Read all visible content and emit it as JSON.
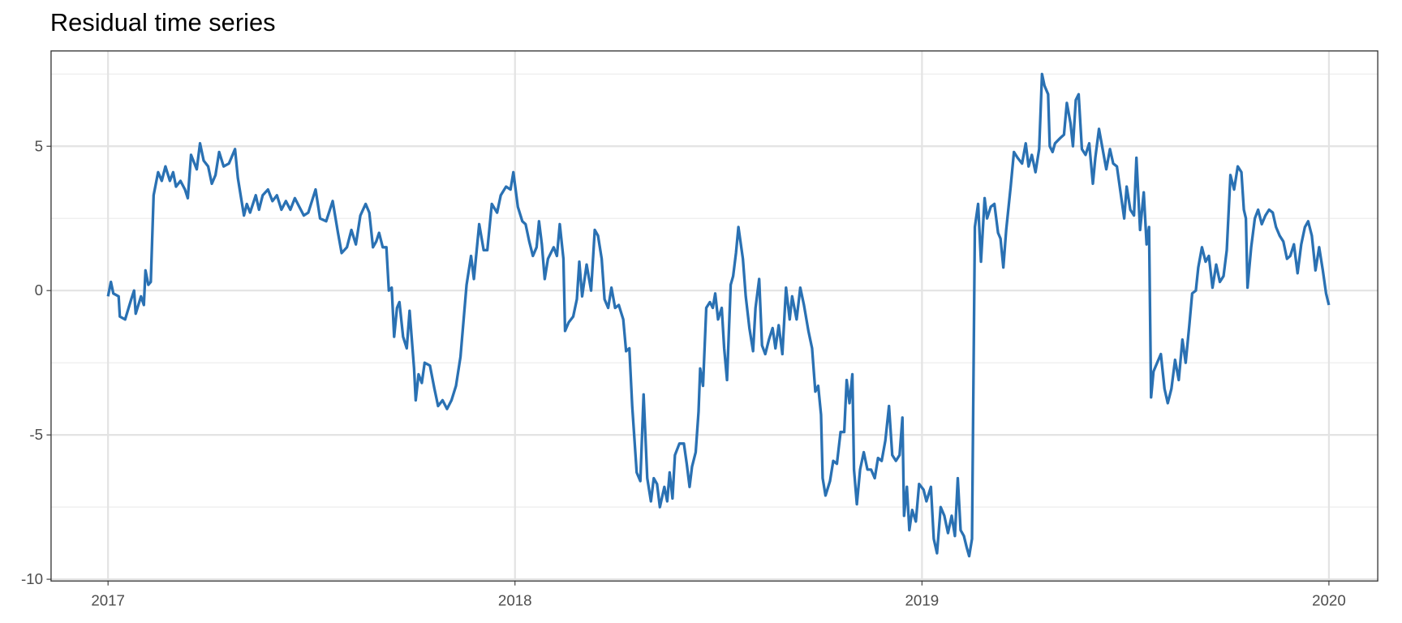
{
  "chart_data": {
    "type": "line",
    "title": "Residual time series",
    "xlim": [
      2016.86,
      2020.12
    ],
    "xticks": [
      2017,
      2018,
      2019,
      2020
    ],
    "ylim": [
      -10.06,
      8.3
    ],
    "yticks": [
      -10,
      -5,
      0,
      5
    ],
    "yminorticks": [
      -7.5,
      -2.5,
      2.5,
      7.5
    ],
    "grid": true,
    "series": [
      {
        "color": "#2a71b3",
        "x": [
          2017.0,
          2017.007,
          2017.013,
          2017.026,
          2017.029,
          2017.042,
          2017.057,
          2017.064,
          2017.068,
          2017.081,
          2017.088,
          2017.092,
          2017.099,
          2017.105,
          2017.112,
          2017.123,
          2017.132,
          2017.141,
          2017.152,
          2017.16,
          2017.167,
          2017.178,
          2017.189,
          2017.196,
          2017.204,
          2017.218,
          2017.226,
          2017.235,
          2017.246,
          2017.255,
          2017.264,
          2017.273,
          2017.284,
          2017.297,
          2017.312,
          2017.319,
          2017.327,
          2017.334,
          2017.341,
          2017.349,
          2017.363,
          2017.371,
          2017.38,
          2017.393,
          2017.404,
          2017.415,
          2017.426,
          2017.437,
          2017.448,
          2017.459,
          2017.47,
          2017.481,
          2017.492,
          2017.51,
          2017.521,
          2017.536,
          2017.552,
          2017.565,
          2017.574,
          2017.587,
          2017.598,
          2017.609,
          2017.62,
          2017.633,
          2017.642,
          2017.651,
          2017.659,
          2017.666,
          2017.675,
          2017.684,
          2017.69,
          2017.697,
          2017.703,
          2017.71,
          2017.716,
          2017.725,
          2017.734,
          2017.741,
          2017.752,
          2017.756,
          2017.763,
          2017.771,
          2017.778,
          2017.791,
          2017.802,
          2017.811,
          2017.822,
          2017.833,
          2017.844,
          2017.855,
          2017.866,
          2017.875,
          2017.881,
          2017.892,
          2017.899,
          2017.912,
          2017.923,
          2017.932,
          2017.943,
          2017.956,
          2017.965,
          2017.978,
          2017.989,
          2017.996,
          2018.007,
          2018.018,
          2018.026,
          2018.035,
          2018.044,
          2018.053,
          2018.059,
          2018.066,
          2018.073,
          2018.081,
          2018.095,
          2018.103,
          2018.11,
          2018.119,
          2018.123,
          2018.132,
          2018.143,
          2018.152,
          2018.158,
          2018.165,
          2018.176,
          2018.187,
          2018.196,
          2018.204,
          2018.213,
          2018.22,
          2018.229,
          2018.237,
          2018.246,
          2018.255,
          2018.266,
          2018.273,
          2018.281,
          2018.288,
          2018.299,
          2018.308,
          2018.316,
          2018.325,
          2018.334,
          2018.341,
          2018.349,
          2018.356,
          2018.367,
          2018.374,
          2018.38,
          2018.387,
          2018.393,
          2018.404,
          2018.415,
          2018.422,
          2018.429,
          2018.435,
          2018.444,
          2018.451,
          2018.455,
          2018.462,
          2018.47,
          2018.479,
          2018.486,
          2018.492,
          2018.499,
          2018.508,
          2018.514,
          2018.521,
          2018.53,
          2018.536,
          2018.543,
          2018.549,
          2018.56,
          2018.567,
          2018.576,
          2018.585,
          2018.591,
          2018.6,
          2018.607,
          2018.615,
          2018.624,
          2018.633,
          2018.64,
          2018.648,
          2018.657,
          2018.666,
          2018.675,
          2018.681,
          2018.692,
          2018.701,
          2018.71,
          2018.721,
          2018.73,
          2018.738,
          2018.745,
          2018.752,
          2018.756,
          2018.763,
          2018.774,
          2018.782,
          2018.791,
          2018.8,
          2018.809,
          2018.815,
          2018.822,
          2018.829,
          2018.833,
          2018.84,
          2018.848,
          2018.857,
          2018.866,
          2018.875,
          2018.884,
          2018.892,
          2018.901,
          2018.91,
          2018.919,
          2018.927,
          2018.936,
          2018.945,
          2018.952,
          2018.956,
          2018.963,
          2018.969,
          2018.976,
          2018.985,
          2018.993,
          2019.004,
          2019.011,
          2019.022,
          2019.029,
          2019.037,
          2019.046,
          2019.055,
          2019.064,
          2019.073,
          2019.081,
          2019.088,
          2019.095,
          2019.103,
          2019.11,
          2019.116,
          2019.123,
          2019.13,
          2019.138,
          2019.145,
          2019.154,
          2019.16,
          2019.169,
          2019.178,
          2019.187,
          2019.193,
          2019.2,
          2019.207,
          2019.218,
          2019.226,
          2019.235,
          2019.246,
          2019.255,
          2019.262,
          2019.27,
          2019.279,
          2019.288,
          2019.295,
          2019.301,
          2019.31,
          2019.314,
          2019.321,
          2019.327,
          2019.341,
          2019.349,
          2019.356,
          2019.365,
          2019.371,
          2019.378,
          2019.385,
          2019.393,
          2019.402,
          2019.411,
          2019.42,
          2019.426,
          2019.435,
          2019.444,
          2019.453,
          2019.462,
          2019.47,
          2019.479,
          2019.488,
          2019.497,
          2019.503,
          2019.512,
          2019.521,
          2019.527,
          2019.536,
          2019.545,
          2019.552,
          2019.558,
          2019.563,
          2019.569,
          2019.578,
          2019.587,
          2019.596,
          2019.604,
          2019.613,
          2019.622,
          2019.631,
          2019.64,
          2019.648,
          2019.657,
          2019.664,
          2019.673,
          2019.679,
          2019.688,
          2019.697,
          2019.705,
          2019.714,
          2019.723,
          2019.732,
          2019.741,
          2019.749,
          2019.758,
          2019.767,
          2019.776,
          2019.785,
          2019.791,
          2019.796,
          2019.8,
          2019.809,
          2019.818,
          2019.826,
          2019.835,
          2019.844,
          2019.853,
          2019.862,
          2019.87,
          2019.879,
          2019.888,
          2019.897,
          2019.905,
          2019.914,
          2019.923,
          2019.932,
          2019.941,
          2019.949,
          2019.958,
          2019.967,
          2019.976,
          2019.985,
          2019.993,
          2020.0
        ],
        "values": [
          -0.2,
          0.3,
          -0.1,
          -0.2,
          -0.9,
          -1.0,
          -0.3,
          0.0,
          -0.8,
          -0.2,
          -0.5,
          0.7,
          0.2,
          0.3,
          3.3,
          4.1,
          3.8,
          4.3,
          3.8,
          4.1,
          3.6,
          3.8,
          3.5,
          3.2,
          4.7,
          4.2,
          5.1,
          4.5,
          4.3,
          3.7,
          4.0,
          4.8,
          4.3,
          4.4,
          4.9,
          3.9,
          3.2,
          2.6,
          3.0,
          2.7,
          3.3,
          2.8,
          3.3,
          3.5,
          3.1,
          3.3,
          2.8,
          3.1,
          2.8,
          3.2,
          2.9,
          2.6,
          2.7,
          3.5,
          2.5,
          2.4,
          3.1,
          2.0,
          1.3,
          1.5,
          2.1,
          1.6,
          2.6,
          3.0,
          2.7,
          1.5,
          1.7,
          2.0,
          1.5,
          1.5,
          0.0,
          0.1,
          -1.6,
          -0.6,
          -0.4,
          -1.6,
          -2.0,
          -0.7,
          -2.7,
          -3.8,
          -2.9,
          -3.2,
          -2.5,
          -2.6,
          -3.4,
          -4.0,
          -3.8,
          -4.1,
          -3.8,
          -3.3,
          -2.3,
          -0.8,
          0.2,
          1.2,
          0.4,
          2.3,
          1.4,
          1.4,
          3.0,
          2.7,
          3.3,
          3.6,
          3.5,
          4.1,
          2.9,
          2.4,
          2.3,
          1.7,
          1.2,
          1.5,
          2.4,
          1.6,
          0.4,
          1.1,
          1.5,
          1.2,
          2.3,
          1.1,
          -1.4,
          -1.1,
          -0.9,
          -0.3,
          1.0,
          -0.2,
          0.9,
          0.0,
          2.1,
          1.9,
          1.1,
          -0.3,
          -0.6,
          0.1,
          -0.6,
          -0.5,
          -1.0,
          -2.1,
          -2.0,
          -4.0,
          -6.3,
          -6.6,
          -3.6,
          -6.5,
          -7.3,
          -6.5,
          -6.7,
          -7.5,
          -6.8,
          -7.3,
          -6.3,
          -7.2,
          -5.7,
          -5.3,
          -5.3,
          -6.0,
          -6.8,
          -6.1,
          -5.6,
          -4.2,
          -2.7,
          -3.3,
          -0.6,
          -0.4,
          -0.6,
          -0.1,
          -1.0,
          -0.6,
          -2.0,
          -3.1,
          0.2,
          0.5,
          1.3,
          2.2,
          1.1,
          -0.2,
          -1.3,
          -2.1,
          -0.6,
          0.4,
          -1.9,
          -2.2,
          -1.7,
          -1.3,
          -2.0,
          -1.2,
          -2.2,
          0.1,
          -1.0,
          -0.2,
          -1.0,
          0.1,
          -0.5,
          -1.4,
          -2.0,
          -3.5,
          -3.3,
          -4.3,
          -6.5,
          -7.1,
          -6.6,
          -5.9,
          -6.0,
          -4.9,
          -4.9,
          -3.1,
          -3.9,
          -2.9,
          -6.2,
          -7.4,
          -6.2,
          -5.6,
          -6.2,
          -6.2,
          -6.5,
          -5.8,
          -5.9,
          -5.2,
          -4.0,
          -5.7,
          -5.9,
          -5.7,
          -4.4,
          -7.8,
          -6.8,
          -8.3,
          -7.6,
          -8.0,
          -6.7,
          -6.9,
          -7.3,
          -6.8,
          -8.6,
          -9.1,
          -7.5,
          -7.8,
          -8.4,
          -7.8,
          -8.5,
          -6.5,
          -8.3,
          -8.5,
          -8.9,
          -9.2,
          -8.6,
          2.2,
          3.0,
          1.0,
          3.2,
          2.5,
          2.9,
          3.0,
          2.0,
          1.8,
          0.8,
          2.1,
          3.6,
          4.8,
          4.6,
          4.4,
          5.1,
          4.3,
          4.7,
          4.1,
          4.9,
          7.5,
          7.1,
          6.8,
          5.0,
          4.8,
          5.1,
          5.3,
          5.4,
          6.5,
          5.8,
          5.0,
          6.6,
          6.8,
          4.9,
          4.7,
          5.1,
          3.7,
          4.6,
          5.6,
          4.9,
          4.2,
          4.9,
          4.4,
          4.3,
          3.4,
          2.5,
          3.6,
          2.8,
          2.6,
          4.6,
          2.1,
          3.4,
          1.6,
          2.2,
          -3.7,
          -2.8,
          -2.5,
          -2.2,
          -3.4,
          -3.9,
          -3.4,
          -2.4,
          -3.1,
          -1.7,
          -2.5,
          -1.2,
          -0.1,
          0.0,
          0.8,
          1.5,
          1.0,
          1.2,
          0.1,
          0.9,
          0.3,
          0.5,
          1.4,
          4.0,
          3.5,
          4.3,
          4.1,
          2.8,
          2.5,
          0.1,
          1.5,
          2.5,
          2.8,
          2.3,
          2.6,
          2.8,
          2.7,
          2.2,
          1.9,
          1.7,
          1.1,
          1.2,
          1.6,
          0.6,
          1.6,
          2.2,
          2.4,
          1.9,
          0.7,
          1.5,
          0.7,
          -0.1,
          -0.5
        ]
      }
    ]
  }
}
